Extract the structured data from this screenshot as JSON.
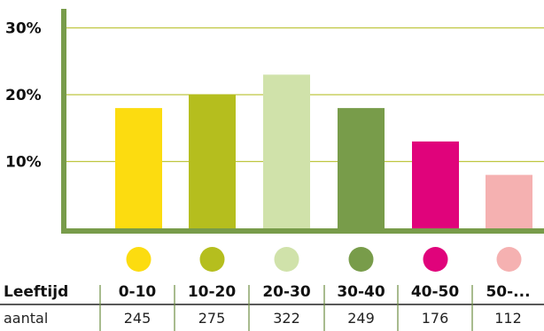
{
  "chart_data": {
    "type": "bar",
    "categories": [
      "0-10",
      "10-20",
      "20-30",
      "30-40",
      "40-50",
      "50-..."
    ],
    "values": [
      18,
      20,
      23,
      18,
      13,
      8
    ],
    "y_unit": "%",
    "ylim": [
      0,
      33
    ],
    "yticks": [
      10,
      20,
      30
    ],
    "ytick_labels": [
      "10%",
      "20%",
      "30%"
    ],
    "grid": true,
    "colors": [
      "#FCDC10",
      "#B5BE1E",
      "#D0E2AA",
      "#789C4A",
      "#E0037B",
      "#F5B1B1"
    ],
    "table": {
      "header_label": "Leeftijd",
      "category_labels": [
        "0-10",
        "10-20",
        "20-30",
        "30-40",
        "40-50",
        "50-..."
      ],
      "count_label": "aantal",
      "counts": [
        "245",
        "275",
        "322",
        "249",
        "176",
        "112"
      ]
    },
    "axis_color": "#789C4A",
    "grid_color": "#BFC640"
  }
}
